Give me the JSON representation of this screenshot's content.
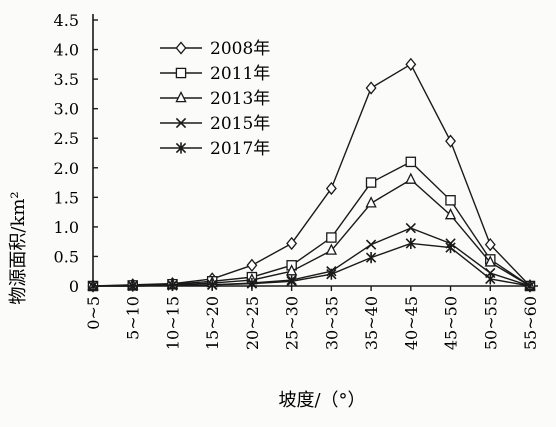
{
  "chart_data": {
    "type": "line",
    "title": "",
    "xlabel": "坡度/（°）",
    "ylabel": "物源面积/km²",
    "categories": [
      "0~5",
      "5~10",
      "10~15",
      "15~20",
      "20~25",
      "25~30",
      "30~35",
      "35~40",
      "40~45",
      "45~50",
      "50~55",
      "55~60"
    ],
    "y_ticks": [
      "0",
      "0.5",
      "1.0",
      "1.5",
      "2.0",
      "2.5",
      "3.0",
      "3.5",
      "4.0",
      "4.5"
    ],
    "ylim": [
      0,
      4.5
    ],
    "grid": false,
    "legend_position": "top-left",
    "series": [
      {
        "name": "2008年",
        "marker": "diamond",
        "values": [
          0,
          0.02,
          0.04,
          0.12,
          0.35,
          0.72,
          1.65,
          3.35,
          3.75,
          2.45,
          0.7,
          0
        ]
      },
      {
        "name": "2011年",
        "marker": "square",
        "values": [
          0,
          0.01,
          0.03,
          0.08,
          0.15,
          0.35,
          0.82,
          1.75,
          2.1,
          1.45,
          0.45,
          0
        ]
      },
      {
        "name": "2013年",
        "marker": "triangle",
        "values": [
          0,
          0.01,
          0.02,
          0.05,
          0.1,
          0.25,
          0.6,
          1.4,
          1.8,
          1.2,
          0.4,
          0
        ]
      },
      {
        "name": "2015年",
        "marker": "x",
        "values": [
          0,
          0,
          0.01,
          0.02,
          0.05,
          0.1,
          0.25,
          0.7,
          0.98,
          0.72,
          0.22,
          0
        ]
      },
      {
        "name": "2017年",
        "marker": "star",
        "values": [
          0,
          0,
          0.01,
          0.02,
          0.04,
          0.08,
          0.2,
          0.48,
          0.72,
          0.65,
          0.12,
          0
        ]
      }
    ]
  }
}
